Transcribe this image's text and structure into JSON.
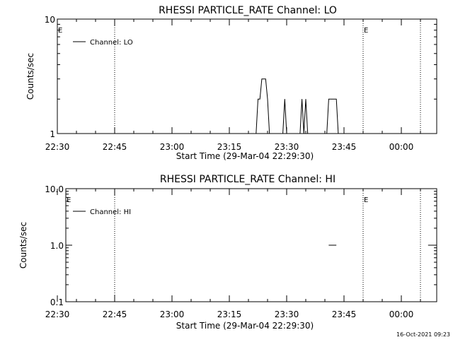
{
  "chart_data": [
    {
      "type": "line",
      "title": "RHESSI PARTICLE_RATE Channel: LO",
      "xlabel": "Start Time (29-Mar-04 22:29:30)",
      "ylabel": "Counts/sec",
      "y_scale": "log",
      "ylim": [
        1,
        10
      ],
      "y_ticks": [
        {
          "value": 1,
          "label": "1"
        },
        {
          "value": 10,
          "label": "10"
        }
      ],
      "x_ticks": [
        "22:30",
        "22:45",
        "23:00",
        "23:15",
        "23:30",
        "23:45",
        "00:00"
      ],
      "legend": {
        "label": "Channel: LO",
        "placement": "top-left"
      },
      "markers": [
        {
          "time": "22:45",
          "label": ""
        },
        {
          "time": "23:50",
          "label": "E"
        },
        {
          "time": "00:05",
          "label": ""
        }
      ],
      "corner_label": "E",
      "series": [
        {
          "values": [
            {
              "time": "23:22:00",
              "y": 1
            },
            {
              "time": "23:22:30",
              "y": 2
            },
            {
              "time": "23:23:00",
              "y": 2
            },
            {
              "time": "23:23:30",
              "y": 3
            },
            {
              "time": "23:24:30",
              "y": 3
            },
            {
              "time": "23:25:00",
              "y": 2
            },
            {
              "time": "23:25:30",
              "y": 1
            },
            {
              "time": "23:29:00",
              "y": 1
            },
            {
              "time": "23:29:30",
              "y": 2
            },
            {
              "time": "23:30:00",
              "y": 1
            },
            {
              "time": "23:33:30",
              "y": 1
            },
            {
              "time": "23:34:00",
              "y": 2
            },
            {
              "time": "23:34:30",
              "y": 1
            },
            {
              "time": "23:35:00",
              "y": 2
            },
            {
              "time": "23:35:30",
              "y": 1
            },
            {
              "time": "23:40:30",
              "y": 1
            },
            {
              "time": "23:41:00",
              "y": 2
            },
            {
              "time": "23:43:00",
              "y": 2
            },
            {
              "time": "23:43:30",
              "y": 1
            }
          ]
        }
      ]
    },
    {
      "type": "line",
      "title": "RHESSI PARTICLE_RATE Channel: HI",
      "xlabel": "Start Time (29-Mar-04 22:29:30)",
      "ylabel": "Counts/sec",
      "y_scale": "log",
      "ylim": [
        0.1,
        10
      ],
      "y_ticks": [
        {
          "value": 0.1,
          "label": "0.1"
        },
        {
          "value": 1,
          "label": "1.0"
        },
        {
          "value": 10,
          "label": "10.0"
        }
      ],
      "x_ticks": [
        "22:30",
        "22:45",
        "23:00",
        "23:15",
        "23:30",
        "23:45",
        "00:00"
      ],
      "legend": {
        "label": "Channel: HI",
        "placement": "top-left"
      },
      "markers": [
        {
          "time": "22:45",
          "label": ""
        },
        {
          "time": "23:50",
          "label": "E"
        },
        {
          "time": "00:05",
          "label": ""
        }
      ],
      "corner_label": "E",
      "series": [
        {
          "values": [
            {
              "time": "23:41:00",
              "y": 1
            },
            {
              "time": "23:43:00",
              "y": 1
            }
          ]
        },
        {
          "values": [
            {
              "time": "00:07:00",
              "y": 1
            },
            {
              "time": "00:08:00",
              "y": 1
            }
          ]
        }
      ]
    }
  ],
  "footer": {
    "timestamp": "16-Oct-2021 09:23"
  }
}
